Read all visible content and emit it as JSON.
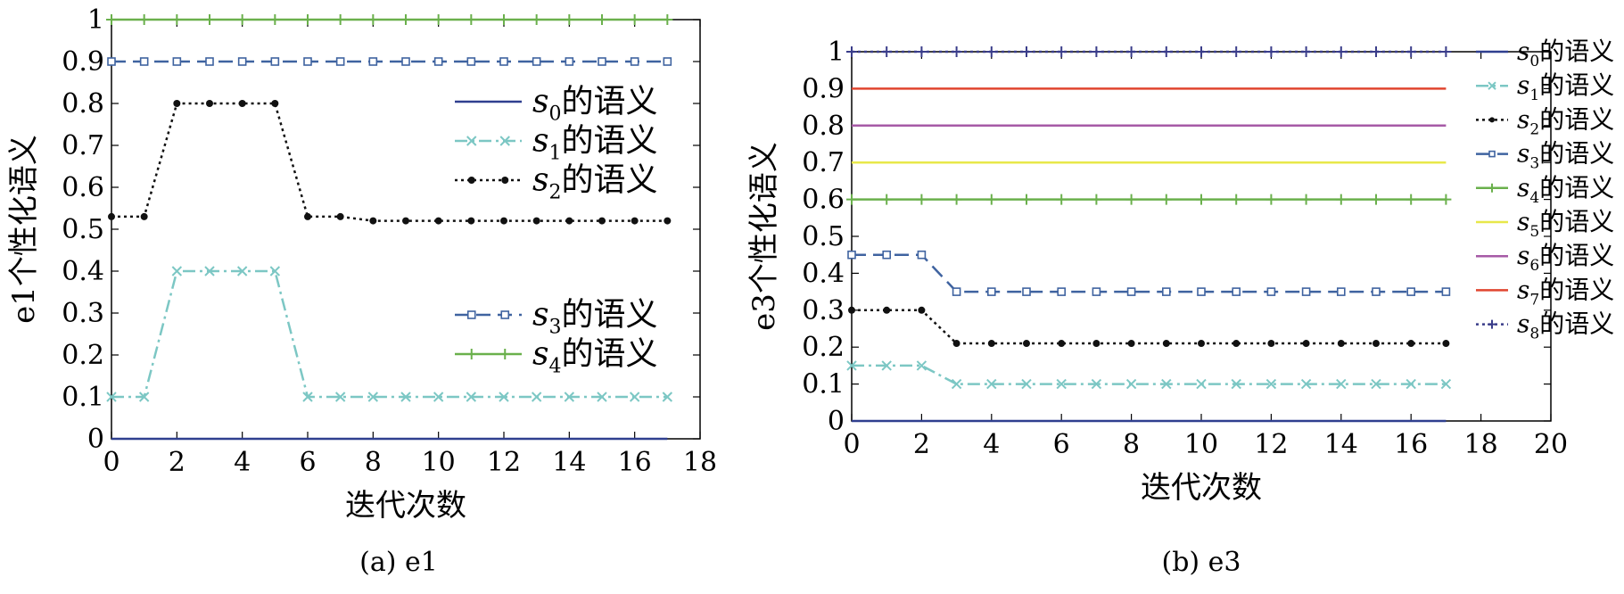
{
  "chart_data": [
    {
      "type": "line",
      "caption": "(a) e1",
      "xlabel": "迭代次数",
      "ylabel": "e1个性化语义",
      "xlim": [
        0,
        18
      ],
      "ylim": [
        0,
        1
      ],
      "xticks": [
        "0",
        "2",
        "4",
        "6",
        "8",
        "10",
        "12",
        "14",
        "16",
        "18"
      ],
      "yticks": [
        "0",
        "0.1",
        "0.2",
        "0.3",
        "0.4",
        "0.5",
        "0.6",
        "0.7",
        "0.8",
        "0.9",
        "1"
      ],
      "x": [
        0,
        1,
        2,
        3,
        4,
        5,
        6,
        7,
        8,
        9,
        10,
        11,
        12,
        13,
        14,
        15,
        16,
        17
      ],
      "series": [
        {
          "name": "s0的语义",
          "color": "#2f3f8f",
          "marker": "none",
          "dash": "solid",
          "values": [
            0,
            0,
            0,
            0,
            0,
            0,
            0,
            0,
            0,
            0,
            0,
            0,
            0,
            0,
            0,
            0,
            0,
            0
          ]
        },
        {
          "name": "s1的语义",
          "color": "#7cc7c4",
          "marker": "x",
          "dash": "dashdot",
          "values": [
            0.1,
            0.1,
            0.4,
            0.4,
            0.4,
            0.4,
            0.1,
            0.1,
            0.1,
            0.1,
            0.1,
            0.1,
            0.1,
            0.1,
            0.1,
            0.1,
            0.1,
            0.1
          ]
        },
        {
          "name": "s2的语义",
          "color": "#111111",
          "marker": "dot",
          "dash": "dotted",
          "values": [
            0.53,
            0.53,
            0.8,
            0.8,
            0.8,
            0.8,
            0.53,
            0.53,
            0.52,
            0.52,
            0.52,
            0.52,
            0.52,
            0.52,
            0.52,
            0.52,
            0.52,
            0.52
          ]
        },
        {
          "name": "s3的语义",
          "color": "#3f63a0",
          "marker": "square",
          "dash": "dashed",
          "values": [
            0.9,
            0.9,
            0.9,
            0.9,
            0.9,
            0.9,
            0.9,
            0.9,
            0.9,
            0.9,
            0.9,
            0.9,
            0.9,
            0.9,
            0.9,
            0.9,
            0.9,
            0.9
          ]
        },
        {
          "name": "s4的语义",
          "color": "#6ab04c",
          "marker": "plus",
          "dash": "solid",
          "values": [
            1,
            1,
            1,
            1,
            1,
            1,
            1,
            1,
            1,
            1,
            1,
            1,
            1,
            1,
            1,
            1,
            1,
            1
          ]
        }
      ],
      "legend": "right"
    },
    {
      "type": "line",
      "caption": "(b) e3",
      "xlabel": "迭代次数",
      "ylabel": "e3个性化语义",
      "xlim": [
        0,
        20
      ],
      "ylim": [
        0,
        1
      ],
      "xticks": [
        "0",
        "2",
        "4",
        "6",
        "8",
        "10",
        "12",
        "14",
        "16",
        "18",
        "20"
      ],
      "yticks": [
        "0",
        "0.1",
        "0.2",
        "0.3",
        "0.4",
        "0.5",
        "0.6",
        "0.7",
        "0.8",
        "0.9",
        "1"
      ],
      "x": [
        0,
        1,
        2,
        3,
        4,
        5,
        6,
        7,
        8,
        9,
        10,
        11,
        12,
        13,
        14,
        15,
        16,
        17
      ],
      "series": [
        {
          "name": "s0的语义",
          "color": "#2f3f8f",
          "marker": "none",
          "dash": "solid",
          "values": [
            0,
            0,
            0,
            0,
            0,
            0,
            0,
            0,
            0,
            0,
            0,
            0,
            0,
            0,
            0,
            0,
            0,
            0
          ]
        },
        {
          "name": "s1的语义",
          "color": "#7cc7c4",
          "marker": "x",
          "dash": "dashdot",
          "values": [
            0.15,
            0.15,
            0.15,
            0.1,
            0.1,
            0.1,
            0.1,
            0.1,
            0.1,
            0.1,
            0.1,
            0.1,
            0.1,
            0.1,
            0.1,
            0.1,
            0.1,
            0.1
          ]
        },
        {
          "name": "s2的语义",
          "color": "#111111",
          "marker": "dot",
          "dash": "dotted",
          "values": [
            0.3,
            0.3,
            0.3,
            0.21,
            0.21,
            0.21,
            0.21,
            0.21,
            0.21,
            0.21,
            0.21,
            0.21,
            0.21,
            0.21,
            0.21,
            0.21,
            0.21,
            0.21
          ]
        },
        {
          "name": "s3的语义",
          "color": "#3f63a0",
          "marker": "square",
          "dash": "dashed",
          "values": [
            0.45,
            0.45,
            0.45,
            0.35,
            0.35,
            0.35,
            0.35,
            0.35,
            0.35,
            0.35,
            0.35,
            0.35,
            0.35,
            0.35,
            0.35,
            0.35,
            0.35,
            0.35
          ]
        },
        {
          "name": "s4的语义",
          "color": "#6ab04c",
          "marker": "plus",
          "dash": "solid",
          "values": [
            0.6,
            0.6,
            0.6,
            0.6,
            0.6,
            0.6,
            0.6,
            0.6,
            0.6,
            0.6,
            0.6,
            0.6,
            0.6,
            0.6,
            0.6,
            0.6,
            0.6,
            0.6
          ]
        },
        {
          "name": "s5的语义",
          "color": "#e8e84a",
          "marker": "none",
          "dash": "solid",
          "values": [
            0.7,
            0.7,
            0.7,
            0.7,
            0.7,
            0.7,
            0.7,
            0.7,
            0.7,
            0.7,
            0.7,
            0.7,
            0.7,
            0.7,
            0.7,
            0.7,
            0.7,
            0.7
          ]
        },
        {
          "name": "s6的语义",
          "color": "#a65aa6",
          "marker": "none",
          "dash": "solid",
          "values": [
            0.8,
            0.8,
            0.8,
            0.8,
            0.8,
            0.8,
            0.8,
            0.8,
            0.8,
            0.8,
            0.8,
            0.8,
            0.8,
            0.8,
            0.8,
            0.8,
            0.8,
            0.8
          ]
        },
        {
          "name": "s7的语义",
          "color": "#e0452f",
          "marker": "none",
          "dash": "solid",
          "values": [
            0.9,
            0.9,
            0.9,
            0.9,
            0.9,
            0.9,
            0.9,
            0.9,
            0.9,
            0.9,
            0.9,
            0.9,
            0.9,
            0.9,
            0.9,
            0.9,
            0.9,
            0.9
          ]
        },
        {
          "name": "s8的语义",
          "color": "#3a3d8a",
          "marker": "plus",
          "dash": "dotted",
          "values": [
            1,
            1,
            1,
            1,
            1,
            1,
            1,
            1,
            1,
            1,
            1,
            1,
            1,
            1,
            1,
            1,
            1,
            1
          ]
        }
      ],
      "legend": "outside-right"
    }
  ]
}
